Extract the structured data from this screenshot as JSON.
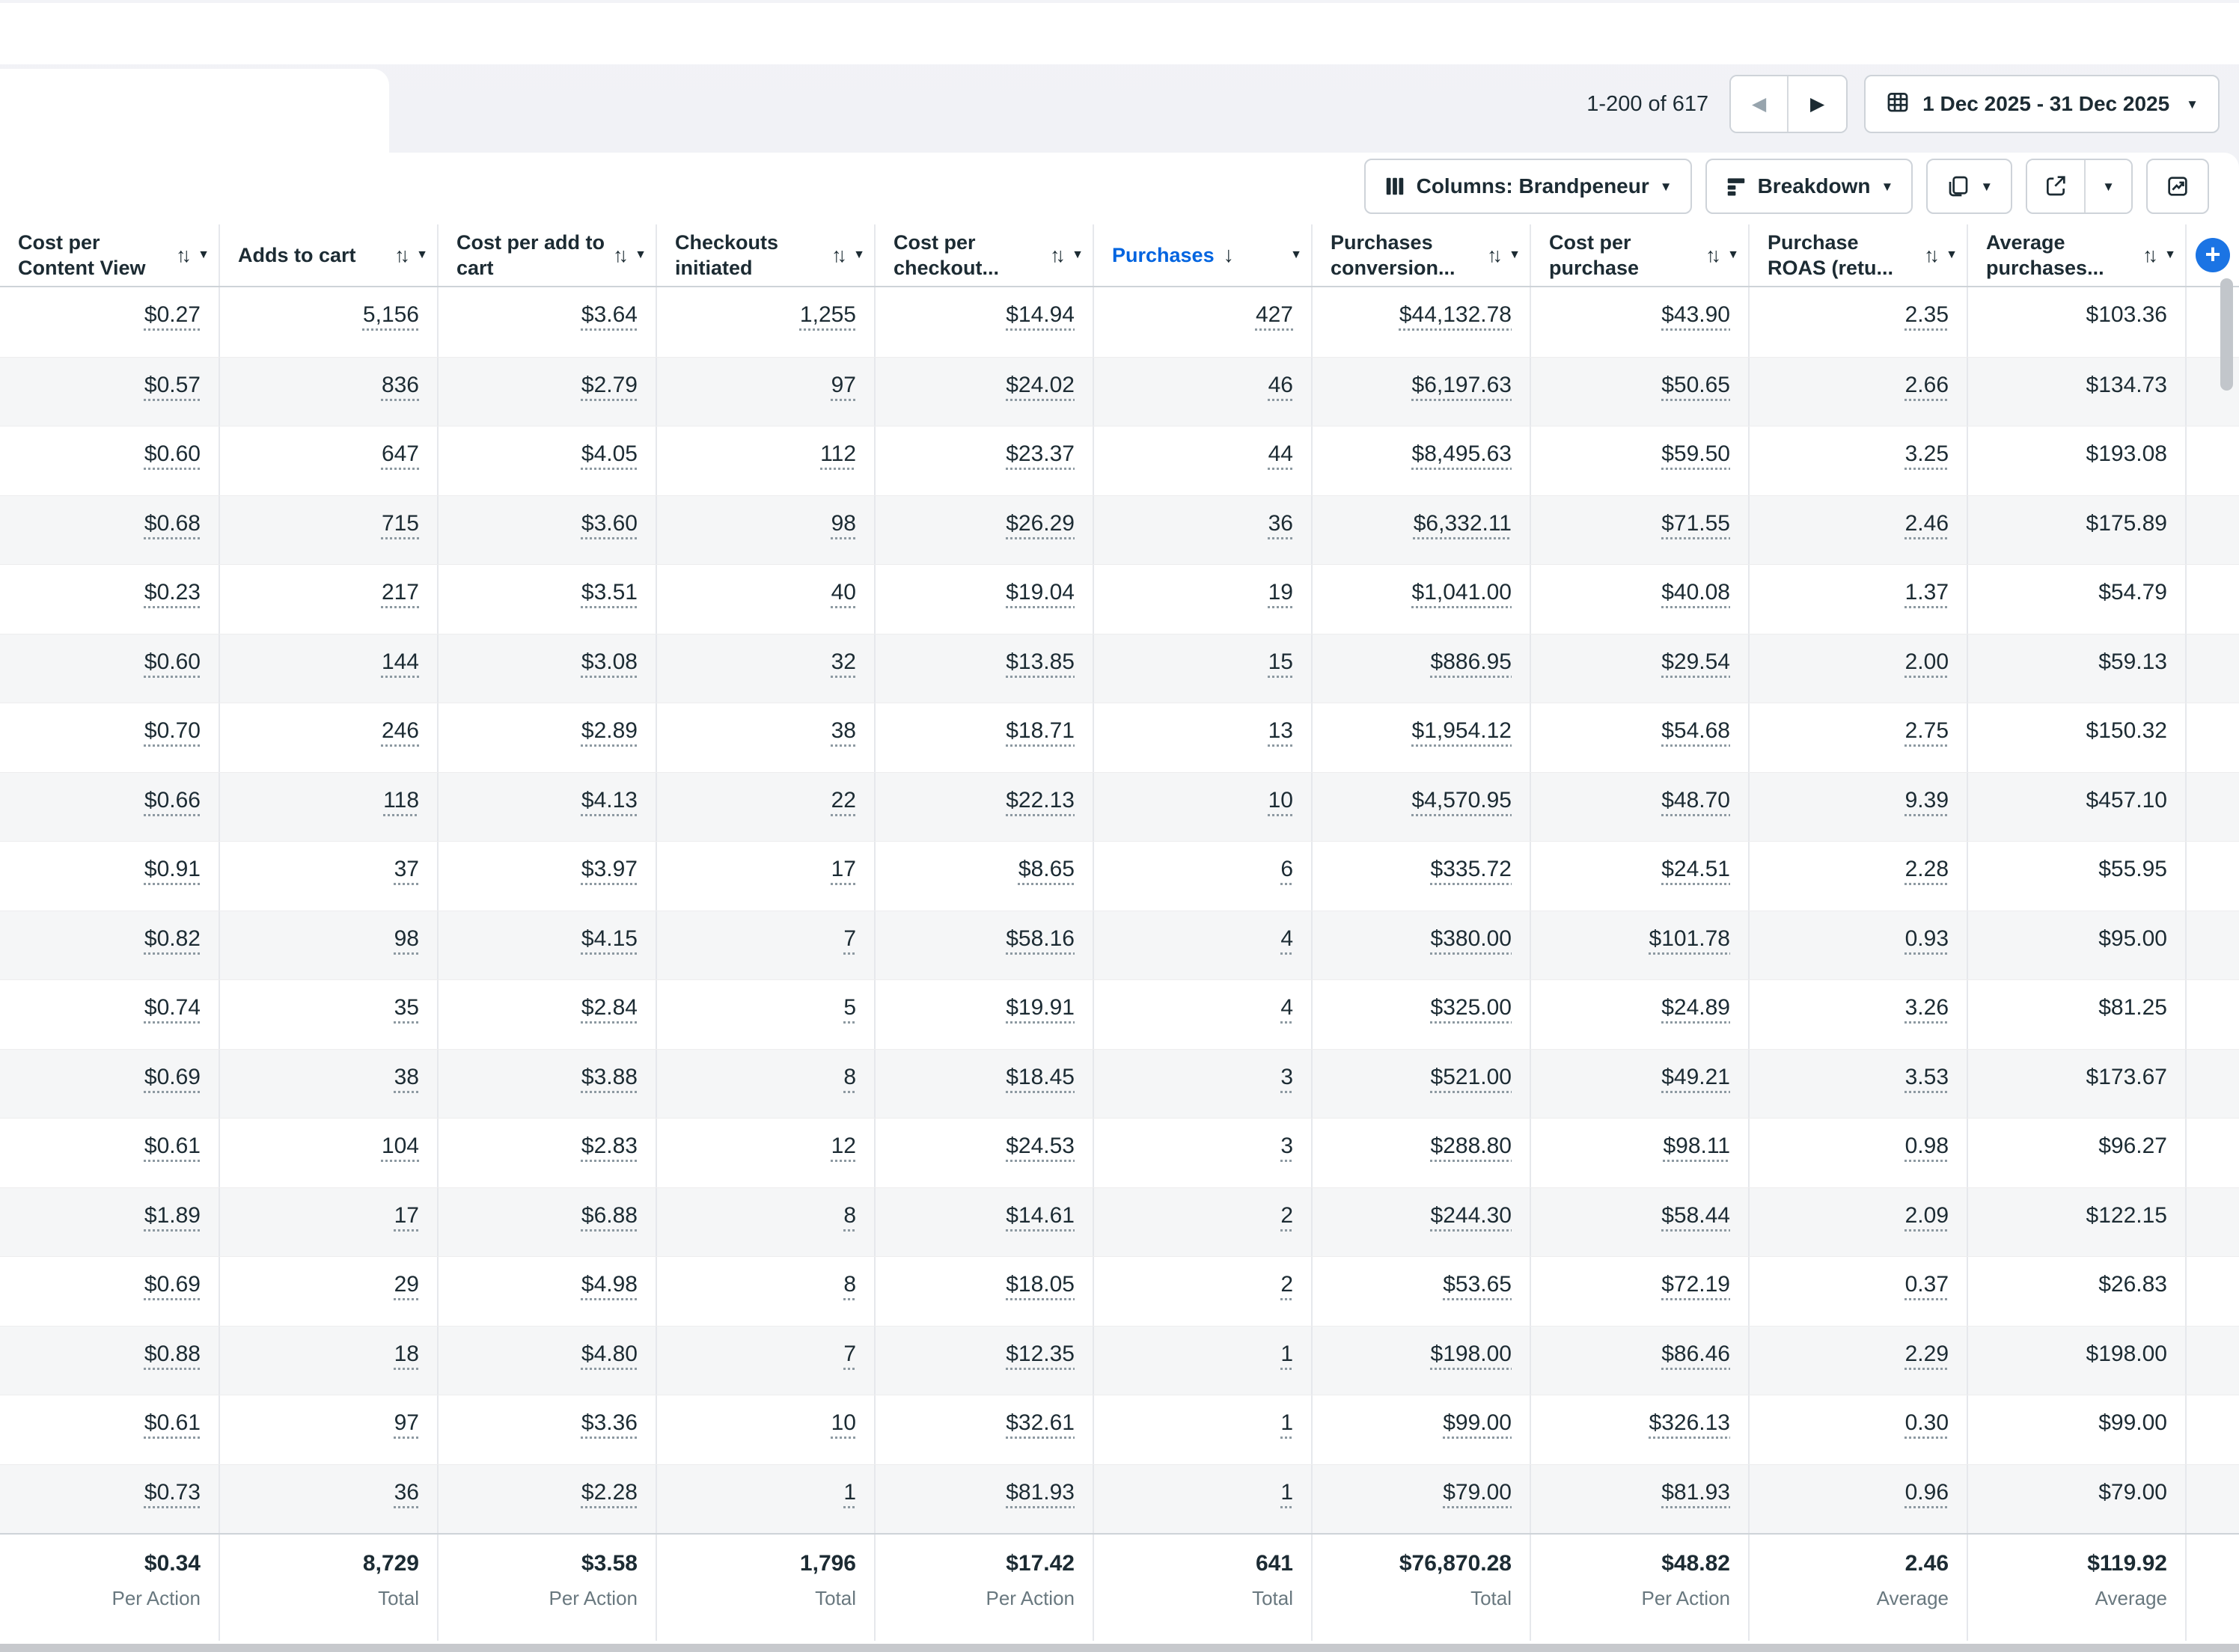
{
  "pagination": {
    "range_label": "1-200 of 617"
  },
  "date_range": {
    "label": "1 Dec 2025 - 31 Dec 2025"
  },
  "toolbar": {
    "columns_label": "Columns: Brandpeneur",
    "breakdown_label": "Breakdown"
  },
  "icons": {
    "prev": "◀",
    "next": "▶",
    "caret": "▼",
    "sort_both": "↑↓",
    "sort_desc": "↓",
    "add": "+"
  },
  "colors": {
    "accent_blue": "#0064e0",
    "plus_blue": "#1b74e4",
    "text_dark": "#1c2b33",
    "row_alt": "#f5f6f7"
  },
  "table": {
    "columns": [
      {
        "label": "Cost per Content View",
        "sort": "both",
        "sorted": false,
        "underlined": true
      },
      {
        "label": "Adds to cart",
        "sort": "both",
        "sorted": false,
        "underlined": true
      },
      {
        "label": "Cost per add to cart",
        "sort": "both",
        "sorted": false,
        "underlined": true
      },
      {
        "label": "Checkouts initiated",
        "sort": "both",
        "sorted": false,
        "underlined": true
      },
      {
        "label": "Cost per checkout...",
        "sort": "both",
        "sorted": false,
        "underlined": true
      },
      {
        "label": "Purchases",
        "sort": "desc",
        "sorted": true,
        "underlined": true
      },
      {
        "label": "Purchases conversion...",
        "sort": "both",
        "sorted": false,
        "underlined": true
      },
      {
        "label": "Cost per purchase",
        "sort": "both",
        "sorted": false,
        "underlined": true
      },
      {
        "label": "Purchase ROAS (retu...",
        "sort": "both",
        "sorted": false,
        "underlined": true
      },
      {
        "label": "Average purchases...",
        "sort": "both",
        "sorted": false,
        "underlined": false
      }
    ],
    "rows": [
      [
        "$0.27",
        "5,156",
        "$3.64",
        "1,255",
        "$14.94",
        "427",
        "$44,132.78",
        "$43.90",
        "2.35",
        "$103.36"
      ],
      [
        "$0.57",
        "836",
        "$2.79",
        "97",
        "$24.02",
        "46",
        "$6,197.63",
        "$50.65",
        "2.66",
        "$134.73"
      ],
      [
        "$0.60",
        "647",
        "$4.05",
        "112",
        "$23.37",
        "44",
        "$8,495.63",
        "$59.50",
        "3.25",
        "$193.08"
      ],
      [
        "$0.68",
        "715",
        "$3.60",
        "98",
        "$26.29",
        "36",
        "$6,332.11",
        "$71.55",
        "2.46",
        "$175.89"
      ],
      [
        "$0.23",
        "217",
        "$3.51",
        "40",
        "$19.04",
        "19",
        "$1,041.00",
        "$40.08",
        "1.37",
        "$54.79"
      ],
      [
        "$0.60",
        "144",
        "$3.08",
        "32",
        "$13.85",
        "15",
        "$886.95",
        "$29.54",
        "2.00",
        "$59.13"
      ],
      [
        "$0.70",
        "246",
        "$2.89",
        "38",
        "$18.71",
        "13",
        "$1,954.12",
        "$54.68",
        "2.75",
        "$150.32"
      ],
      [
        "$0.66",
        "118",
        "$4.13",
        "22",
        "$22.13",
        "10",
        "$4,570.95",
        "$48.70",
        "9.39",
        "$457.10"
      ],
      [
        "$0.91",
        "37",
        "$3.97",
        "17",
        "$8.65",
        "6",
        "$335.72",
        "$24.51",
        "2.28",
        "$55.95"
      ],
      [
        "$0.82",
        "98",
        "$4.15",
        "7",
        "$58.16",
        "4",
        "$380.00",
        "$101.78",
        "0.93",
        "$95.00"
      ],
      [
        "$0.74",
        "35",
        "$2.84",
        "5",
        "$19.91",
        "4",
        "$325.00",
        "$24.89",
        "3.26",
        "$81.25"
      ],
      [
        "$0.69",
        "38",
        "$3.88",
        "8",
        "$18.45",
        "3",
        "$521.00",
        "$49.21",
        "3.53",
        "$173.67"
      ],
      [
        "$0.61",
        "104",
        "$2.83",
        "12",
        "$24.53",
        "3",
        "$288.80",
        "$98.11",
        "0.98",
        "$96.27"
      ],
      [
        "$1.89",
        "17",
        "$6.88",
        "8",
        "$14.61",
        "2",
        "$244.30",
        "$58.44",
        "2.09",
        "$122.15"
      ],
      [
        "$0.69",
        "29",
        "$4.98",
        "8",
        "$18.05",
        "2",
        "$53.65",
        "$72.19",
        "0.37",
        "$26.83"
      ],
      [
        "$0.88",
        "18",
        "$4.80",
        "7",
        "$12.35",
        "1",
        "$198.00",
        "$86.46",
        "2.29",
        "$198.00"
      ],
      [
        "$0.61",
        "97",
        "$3.36",
        "10",
        "$32.61",
        "1",
        "$99.00",
        "$326.13",
        "0.30",
        "$99.00"
      ],
      [
        "$0.73",
        "36",
        "$2.28",
        "1",
        "$81.93",
        "1",
        "$79.00",
        "$81.93",
        "0.96",
        "$79.00"
      ]
    ],
    "footer": [
      {
        "value": "$0.34",
        "label": "Per Action"
      },
      {
        "value": "8,729",
        "label": "Total"
      },
      {
        "value": "$3.58",
        "label": "Per Action"
      },
      {
        "value": "1,796",
        "label": "Total"
      },
      {
        "value": "$17.42",
        "label": "Per Action"
      },
      {
        "value": "641",
        "label": "Total"
      },
      {
        "value": "$76,870.28",
        "label": "Total"
      },
      {
        "value": "$48.82",
        "label": "Per Action"
      },
      {
        "value": "2.46",
        "label": "Average"
      },
      {
        "value": "$119.92",
        "label": "Average"
      }
    ]
  }
}
